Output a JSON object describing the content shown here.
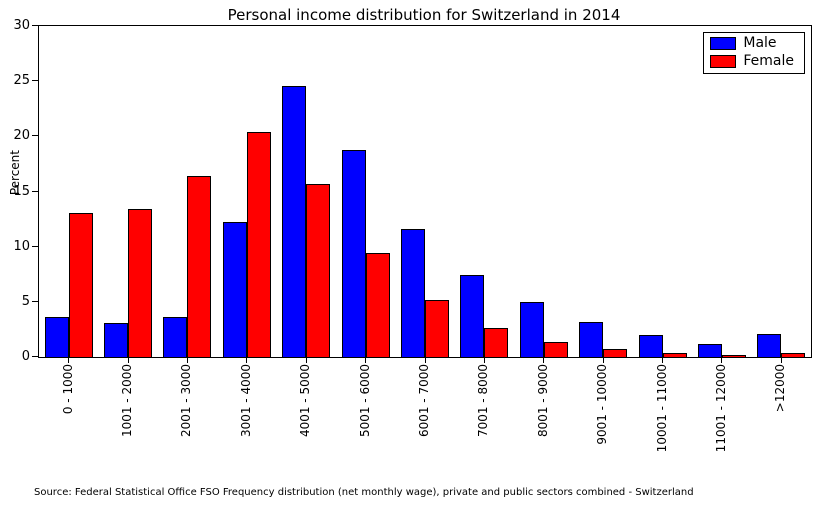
{
  "source": "Source: Federal Statistical Office FSO Frequency distribution (net monthly wage), private and public sectors combined - Switzerland",
  "chart_data": {
    "type": "bar",
    "title": "Personal income distribution for Switzerland in 2014",
    "xlabel": "",
    "ylabel": "Percent",
    "ylim": [
      0,
      30
    ],
    "yticks": [
      0,
      5,
      10,
      15,
      20,
      25,
      30
    ],
    "grid": false,
    "legend_position": "upper right",
    "categories": [
      "0 - 1000",
      "1001 - 2000",
      "2001 - 3000",
      "3001 - 4000",
      "4001 - 5000",
      "5001 - 6000",
      "6001 - 7000",
      "7001 - 8000",
      "8001 - 9000",
      "9001 - 10000",
      "10001 - 11000",
      "11001 - 12000",
      ">12000"
    ],
    "series": [
      {
        "name": "Male",
        "color": "#0000ff",
        "values": [
          3.6,
          3.1,
          3.6,
          12.2,
          24.6,
          18.8,
          11.6,
          7.4,
          5.0,
          3.2,
          2.0,
          1.2,
          2.1
        ]
      },
      {
        "name": "Female",
        "color": "#ff0000",
        "values": [
          13.1,
          13.4,
          16.4,
          20.4,
          15.7,
          9.4,
          5.2,
          2.6,
          1.4,
          0.7,
          0.4,
          0.2,
          0.4
        ]
      }
    ]
  }
}
